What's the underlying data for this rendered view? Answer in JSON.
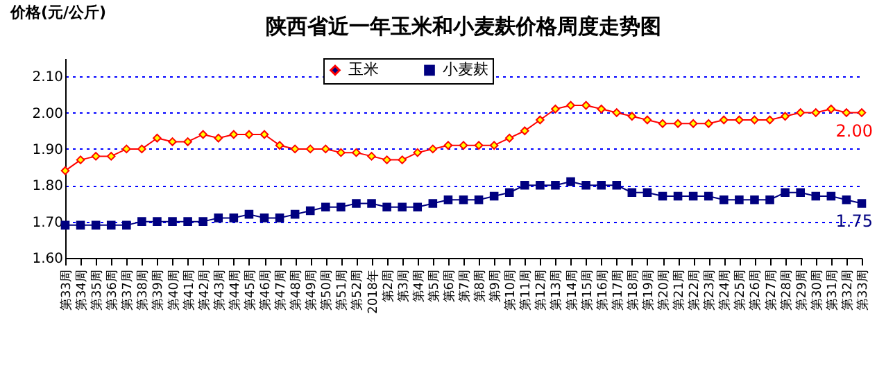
{
  "chart_data": {
    "type": "line",
    "title": "陕西省近一年玉米和小麦麸价格周度走势图",
    "ylabel": "价格(元/公斤)",
    "categories": [
      "第33周",
      "第34周",
      "第35周",
      "第36周",
      "第37周",
      "第38周",
      "第39周",
      "第40周",
      "第41周",
      "第42周",
      "第43周",
      "第44周",
      "第45周",
      "第46周",
      "第47周",
      "第48周",
      "第49周",
      "第50周",
      "第51周",
      "第52周",
      "2018年",
      "第2周",
      "第3周",
      "第4周",
      "第5周",
      "第6周",
      "第7周",
      "第8周",
      "第9周",
      "第10周",
      "第11周",
      "第12周",
      "第13周",
      "第14周",
      "第15周",
      "第16周",
      "第17周",
      "第18周",
      "第19周",
      "第20周",
      "第21周",
      "第22周",
      "第23周",
      "第24周",
      "第25周",
      "第26周",
      "第27周",
      "第28周",
      "第29周",
      "第30周",
      "第31周",
      "第32周",
      "第33周"
    ],
    "series": [
      {
        "name": "玉米",
        "color": "#ff0000",
        "marker": "diamond",
        "values": [
          1.84,
          1.87,
          1.88,
          1.88,
          1.9,
          1.9,
          1.93,
          1.92,
          1.92,
          1.94,
          1.93,
          1.94,
          1.94,
          1.94,
          1.91,
          1.9,
          1.9,
          1.9,
          1.89,
          1.89,
          1.88,
          1.87,
          1.87,
          1.89,
          1.9,
          1.91,
          1.91,
          1.91,
          1.91,
          1.93,
          1.95,
          1.98,
          2.01,
          2.02,
          2.02,
          2.01,
          2.0,
          1.99,
          1.98,
          1.97,
          1.97,
          1.97,
          1.97,
          1.98,
          1.98,
          1.98,
          1.98,
          1.99,
          2.0,
          2.0,
          2.01,
          2.0,
          2.0
        ],
        "value_labels": [
          null,
          null,
          null,
          null,
          null,
          null,
          null,
          null,
          null,
          null,
          null,
          null,
          null,
          null,
          null,
          null,
          null,
          null,
          null,
          null,
          null,
          null,
          null,
          null,
          null,
          null,
          null,
          null,
          null,
          null,
          null,
          null,
          null,
          null,
          null,
          null,
          null,
          null,
          null,
          null,
          null,
          null,
          null,
          null,
          null,
          null,
          null,
          null,
          null,
          null,
          null,
          null,
          "2.00"
        ]
      },
      {
        "name": "小麦麸",
        "color": "#000080",
        "marker": "square",
        "values": [
          1.69,
          1.69,
          1.69,
          1.69,
          1.69,
          1.7,
          1.7,
          1.7,
          1.7,
          1.7,
          1.71,
          1.71,
          1.72,
          1.71,
          1.71,
          1.72,
          1.73,
          1.74,
          1.74,
          1.75,
          1.75,
          1.74,
          1.74,
          1.74,
          1.75,
          1.76,
          1.76,
          1.76,
          1.77,
          1.78,
          1.8,
          1.8,
          1.8,
          1.81,
          1.8,
          1.8,
          1.8,
          1.78,
          1.78,
          1.77,
          1.77,
          1.77,
          1.77,
          1.76,
          1.76,
          1.76,
          1.76,
          1.78,
          1.78,
          1.77,
          1.77,
          1.76,
          1.75
        ],
        "value_labels": [
          null,
          null,
          null,
          null,
          null,
          null,
          null,
          null,
          null,
          null,
          null,
          null,
          null,
          null,
          null,
          null,
          null,
          null,
          null,
          null,
          null,
          null,
          null,
          null,
          null,
          null,
          null,
          null,
          null,
          null,
          null,
          null,
          null,
          null,
          null,
          null,
          null,
          null,
          null,
          null,
          null,
          null,
          null,
          null,
          null,
          null,
          null,
          null,
          null,
          null,
          null,
          null,
          "1.75"
        ]
      }
    ],
    "ylim": [
      1.6,
      2.15
    ],
    "yticks": [
      {
        "value": 1.6,
        "label": "1.60"
      },
      {
        "value": 1.7,
        "label": "1.70"
      },
      {
        "value": 1.8,
        "label": "1.80"
      },
      {
        "value": 1.9,
        "label": "1.90"
      },
      {
        "value": 2.0,
        "label": "2.00"
      },
      {
        "value": 2.1,
        "label": "2.10"
      }
    ],
    "grid": "y",
    "legend": "top",
    "line_style": "solid"
  }
}
